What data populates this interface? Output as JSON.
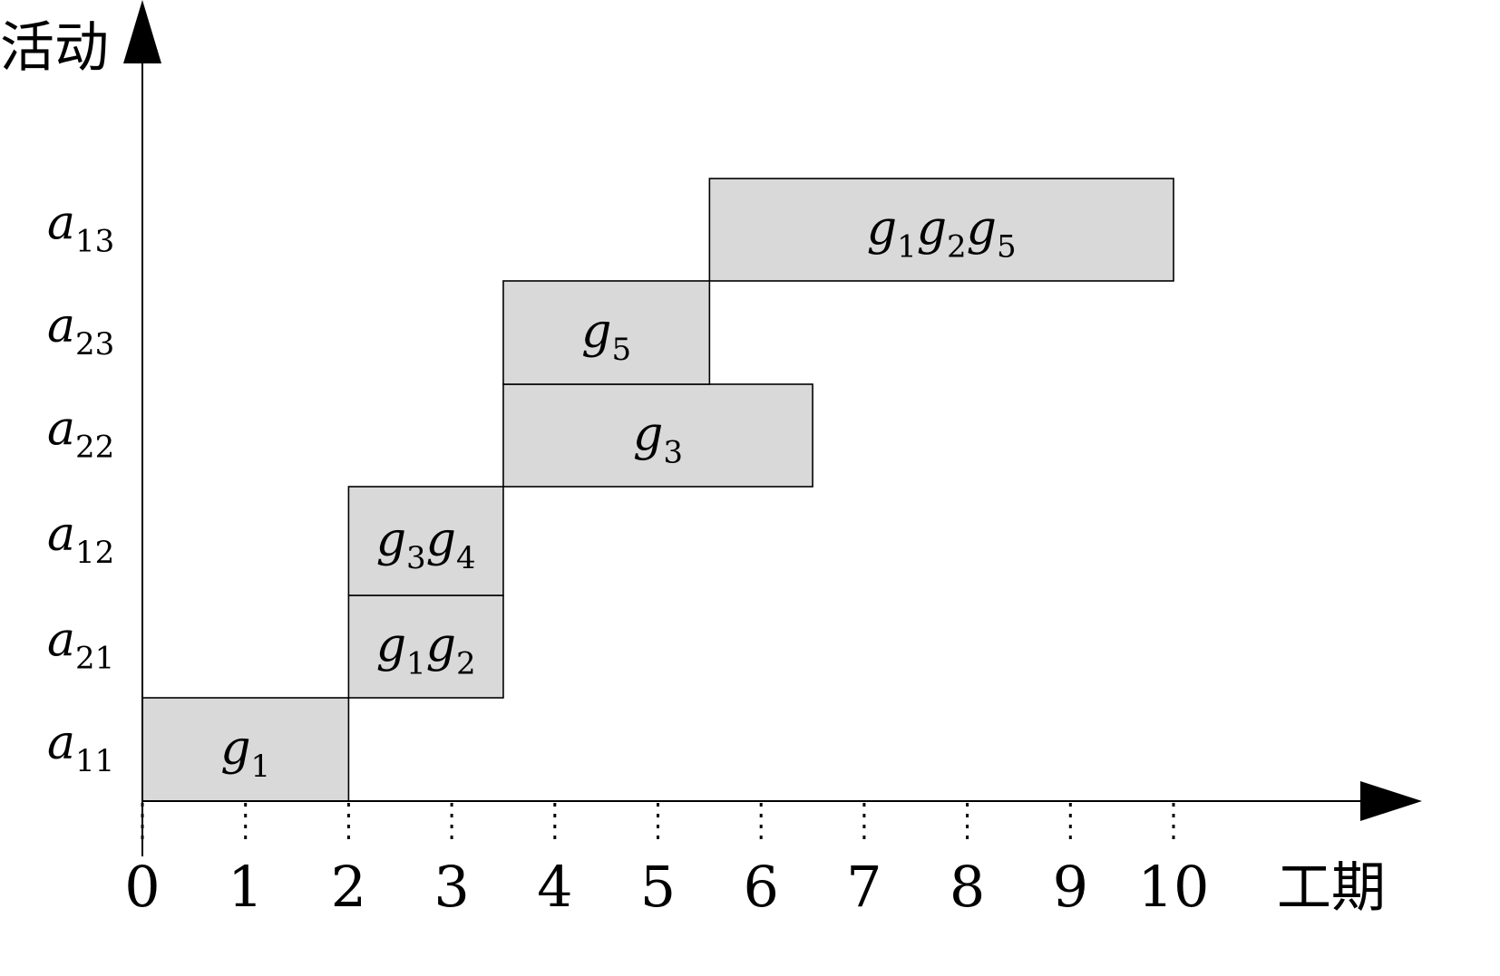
{
  "chart_data": {
    "type": "gantt",
    "xlabel": "工期",
    "ylabel": "活动",
    "xlim": [
      0,
      10
    ],
    "x_ticks": [
      "0",
      "1",
      "2",
      "3",
      "4",
      "5",
      "6",
      "7",
      "8",
      "9",
      "10"
    ],
    "categories": [
      {
        "main": "a",
        "sub": "11"
      },
      {
        "main": "a",
        "sub": "21"
      },
      {
        "main": "a",
        "sub": "12"
      },
      {
        "main": "a",
        "sub": "22"
      },
      {
        "main": "a",
        "sub": "23"
      },
      {
        "main": "a",
        "sub": "13"
      }
    ],
    "tasks": [
      {
        "start": 0,
        "end": 2,
        "row": 0,
        "label": [
          {
            "main": "g",
            "sub": "1"
          }
        ]
      },
      {
        "start": 2,
        "end": 3.5,
        "row": 1,
        "label": [
          {
            "main": "g",
            "sub": "1"
          },
          {
            "main": "g",
            "sub": "2"
          }
        ]
      },
      {
        "start": 2,
        "end": 3.5,
        "row": 2,
        "label": [
          {
            "main": "g",
            "sub": "3"
          },
          {
            "main": "g",
            "sub": "4"
          }
        ]
      },
      {
        "start": 3.5,
        "end": 6.5,
        "row": 3,
        "label": [
          {
            "main": "g",
            "sub": "3"
          }
        ]
      },
      {
        "start": 3.5,
        "end": 5.5,
        "row": 4,
        "label": [
          {
            "main": "g",
            "sub": "5"
          }
        ]
      },
      {
        "start": 5.5,
        "end": 10,
        "row": 5,
        "label": [
          {
            "main": "g",
            "sub": "1"
          },
          {
            "main": "g",
            "sub": "2"
          },
          {
            "main": "g",
            "sub": "5"
          }
        ]
      }
    ],
    "bar_color": "#d9d9d9",
    "grid": false,
    "legend": "none"
  }
}
